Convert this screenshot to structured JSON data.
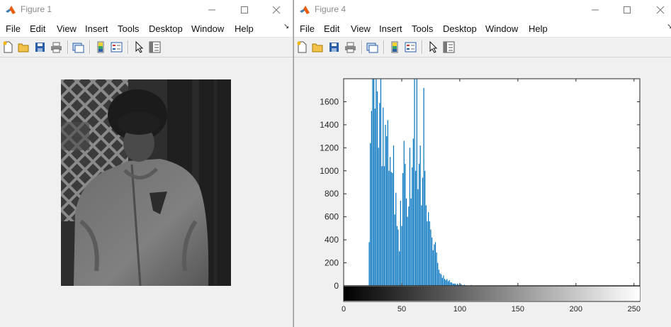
{
  "figure1": {
    "title": "Figure 1",
    "menu": [
      "File",
      "Edit",
      "View",
      "Insert",
      "Tools",
      "Desktop",
      "Window",
      "Help"
    ]
  },
  "figure4": {
    "title": "Figure 4",
    "menu": [
      "File",
      "Edit",
      "View",
      "Insert",
      "Tools",
      "Desktop",
      "Window",
      "Help"
    ]
  },
  "toolbar_icons": [
    "new-figure-icon",
    "open-file-icon",
    "save-icon",
    "print-icon",
    "link-plot-icon",
    "insert-colorbar-icon",
    "insert-legend-icon",
    "edit-plot-icon",
    "property-inspector-icon"
  ],
  "colors": {
    "bar": "#0072bd",
    "matlab_orange": "#e85d10"
  },
  "chart_data": {
    "type": "bar",
    "title": "",
    "xlabel": "",
    "ylabel": "",
    "xlim": [
      0,
      255
    ],
    "ylim": [
      0,
      1800
    ],
    "y_ticks": [
      0,
      200,
      400,
      600,
      800,
      1000,
      1200,
      1400,
      1600
    ],
    "x_ticks": [
      0,
      50,
      100,
      150,
      200,
      250
    ],
    "colorbar": "grayscale 0-255 below x-axis",
    "grid": false,
    "x": [
      22,
      23,
      24,
      25,
      26,
      27,
      28,
      29,
      30,
      31,
      32,
      33,
      34,
      35,
      36,
      37,
      38,
      39,
      40,
      41,
      42,
      43,
      44,
      45,
      46,
      47,
      48,
      49,
      50,
      51,
      52,
      53,
      54,
      55,
      56,
      57,
      58,
      59,
      60,
      61,
      62,
      63,
      64,
      65,
      66,
      67,
      68,
      69,
      70,
      71,
      72,
      73,
      74,
      75,
      76,
      77,
      78,
      79,
      80,
      81,
      82,
      83,
      84,
      85,
      86,
      87,
      88,
      89,
      90,
      91,
      92,
      93,
      94,
      95,
      96,
      97,
      98,
      99,
      100,
      101,
      102,
      103,
      104,
      105,
      110,
      115,
      120,
      125,
      130,
      135,
      140
    ],
    "values": [
      380,
      1240,
      1520,
      1800,
      1800,
      1540,
      1800,
      1690,
      1200,
      1590,
      1800,
      1040,
      1550,
      1040,
      1400,
      1300,
      1440,
      1000,
      1120,
      990,
      980,
      1220,
      620,
      810,
      520,
      490,
      300,
      740,
      520,
      980,
      1260,
      1060,
      760,
      600,
      690,
      1200,
      760,
      1030,
      1280,
      1800,
      1000,
      1800,
      840,
      1060,
      1220,
      700,
      940,
      1720,
      1000,
      700,
      560,
      640,
      560,
      490,
      420,
      310,
      360,
      380,
      290,
      200,
      140,
      110,
      100,
      70,
      90,
      60,
      50,
      60,
      40,
      50,
      30,
      30,
      20,
      20,
      20,
      10,
      20,
      10,
      10,
      15,
      8,
      5,
      10,
      5,
      8,
      5,
      4,
      3,
      2,
      2,
      1
    ]
  }
}
